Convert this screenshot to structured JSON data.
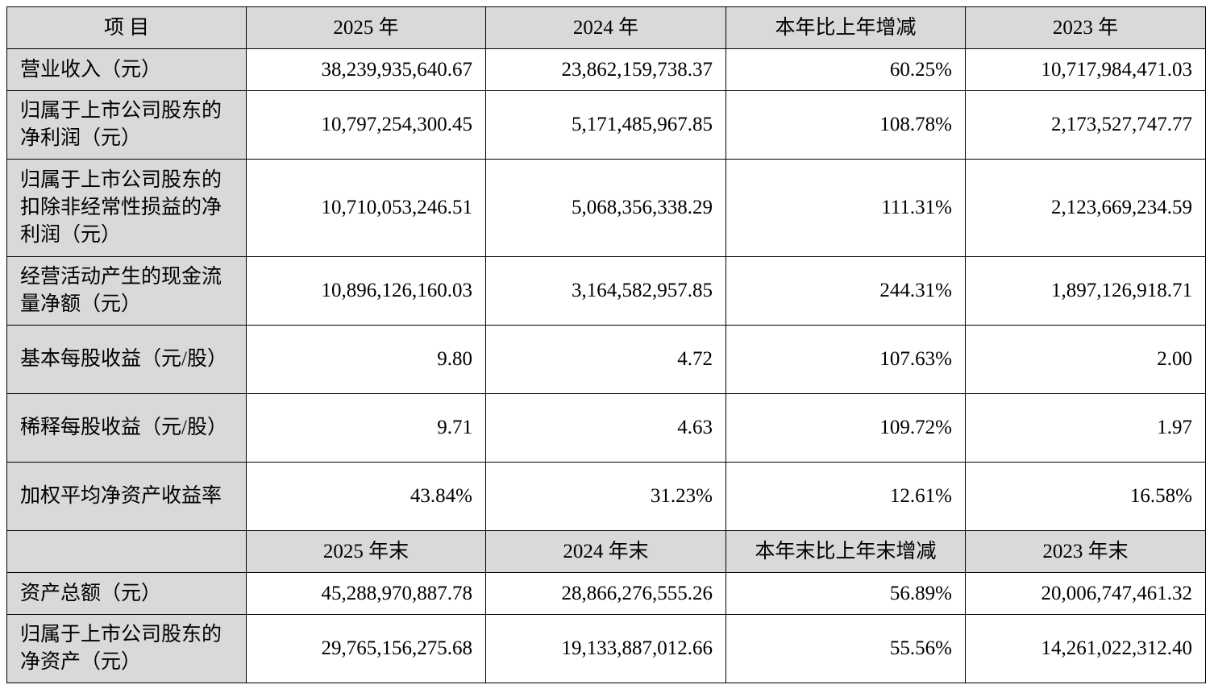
{
  "header": {
    "item": "项 目",
    "col1": "2025 年",
    "col2": "2024 年",
    "col3": "本年比上年增减",
    "col4": "2023 年"
  },
  "rows": [
    {
      "label": "营业收入（元）",
      "v2025": "38,239,935,640.67",
      "v2024": "23,862,159,738.37",
      "change": "60.25%",
      "v2023": "10,717,984,471.03"
    },
    {
      "label": "归属于上市公司股东的净利润（元）",
      "v2025": "10,797,254,300.45",
      "v2024": "5,171,485,967.85",
      "change": "108.78%",
      "v2023": "2,173,527,747.77"
    },
    {
      "label": "归属于上市公司股东的扣除非经常性损益的净利润（元）",
      "v2025": "10,710,053,246.51",
      "v2024": "5,068,356,338.29",
      "change": "111.31%",
      "v2023": "2,123,669,234.59"
    },
    {
      "label": "经营活动产生的现金流量净额（元）",
      "v2025": "10,896,126,160.03",
      "v2024": "3,164,582,957.85",
      "change": "244.31%",
      "v2023": "1,897,126,918.71"
    },
    {
      "label": "基本每股收益（元/股）",
      "v2025": "9.80",
      "v2024": "4.72",
      "change": "107.63%",
      "v2023": "2.00"
    },
    {
      "label": "稀释每股收益（元/股）",
      "v2025": "9.71",
      "v2024": "4.63",
      "change": "109.72%",
      "v2023": "1.97"
    },
    {
      "label": "加权平均净资产收益率",
      "v2025": "43.84%",
      "v2024": "31.23%",
      "change": "12.61%",
      "v2023": "16.58%"
    }
  ],
  "subheader": {
    "item": "",
    "col1": "2025 年末",
    "col2": "2024 年末",
    "col3": "本年末比上年末增减",
    "col4": "2023 年末"
  },
  "rows2": [
    {
      "label": "资产总额（元）",
      "v2025": "45,288,970,887.78",
      "v2024": "28,866,276,555.26",
      "change": "56.89%",
      "v2023": "20,006,747,461.32"
    },
    {
      "label": "归属于上市公司股东的净资产（元）",
      "v2025": "29,765,156,275.68",
      "v2024": "19,133,887,012.66",
      "change": "55.56%",
      "v2023": "14,261,022,312.40"
    }
  ]
}
